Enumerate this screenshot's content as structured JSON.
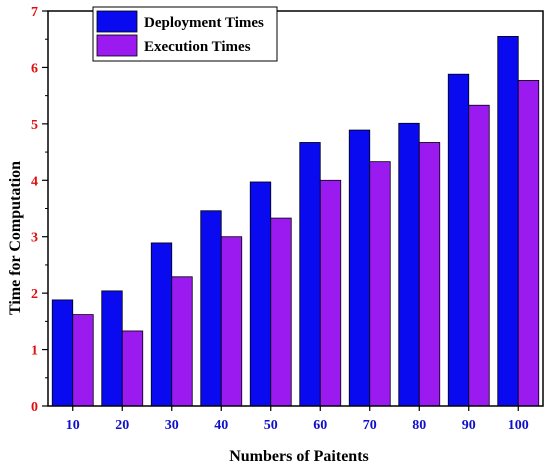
{
  "chart_data": {
    "type": "bar",
    "title": "",
    "xlabel": "Numbers of Paitents",
    "ylabel": "Time for Computation",
    "categories": [
      "10",
      "20",
      "30",
      "40",
      "50",
      "60",
      "70",
      "80",
      "90",
      "100"
    ],
    "series": [
      {
        "name": "Deployment Times",
        "color": "#0a0af0",
        "values": [
          1.88,
          2.04,
          2.89,
          3.46,
          3.97,
          4.67,
          4.89,
          5.01,
          5.88,
          6.55
        ]
      },
      {
        "name": "Execution Times",
        "color": "#9a1af0",
        "values": [
          1.62,
          1.33,
          2.29,
          3.0,
          3.33,
          4.0,
          4.33,
          4.67,
          5.33,
          5.77
        ]
      }
    ],
    "ylim": [
      0,
      7
    ],
    "yticks": [
      "0",
      "1",
      "2",
      "3",
      "4",
      "5",
      "6",
      "7"
    ],
    "grid": false,
    "legend": "top-left",
    "tick_label_colors": {
      "y": "#e01010",
      "x": "#1010c8"
    }
  }
}
